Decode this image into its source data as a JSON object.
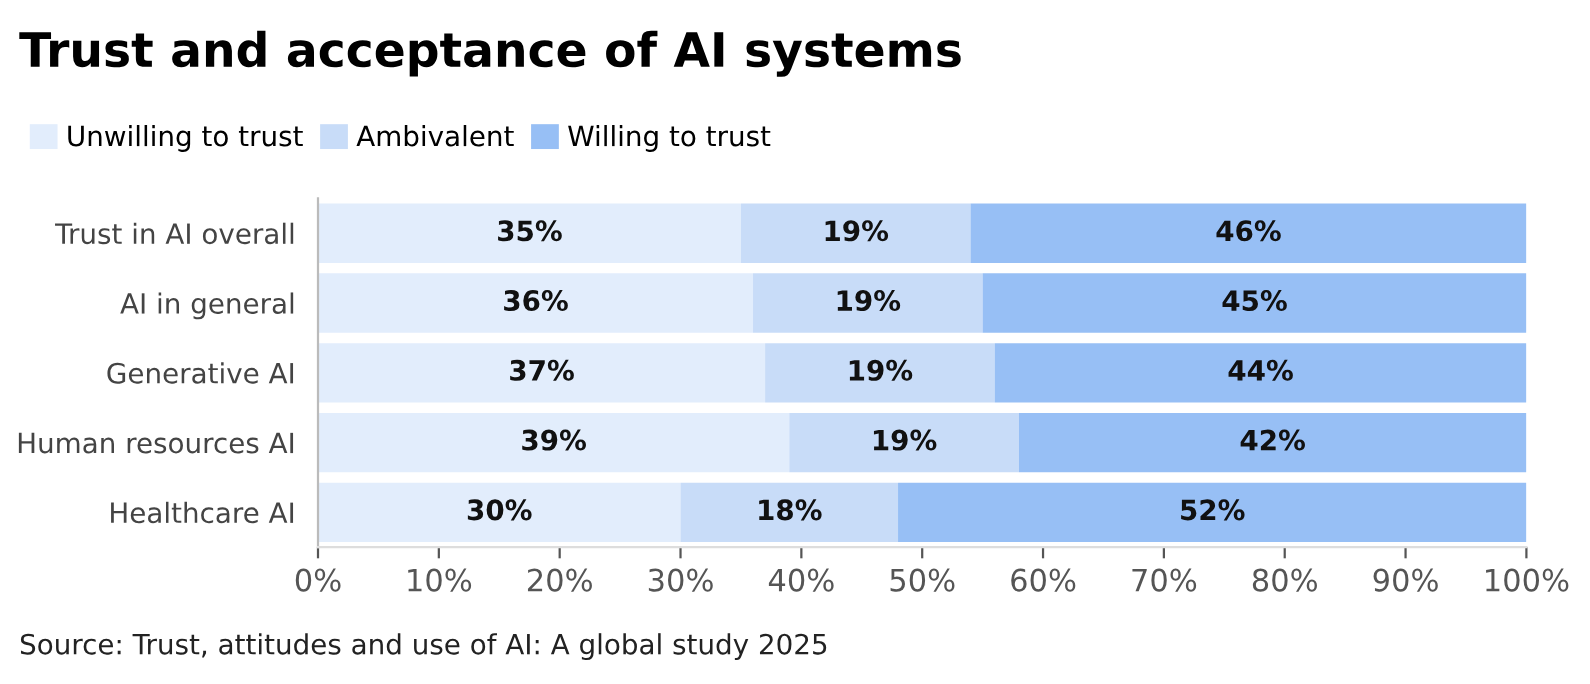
{
  "chart_data": {
    "type": "bar",
    "title": "Trust and acceptance of AI systems",
    "orientation": "horizontal",
    "stacked": true,
    "legend": "top left",
    "categories": [
      "Trust in AI overall",
      "AI in general",
      "Generative AI",
      "Human resources AI",
      "Healthcare AI"
    ],
    "series": [
      {
        "name": "Unwilling to trust",
        "color": "#e2edfc",
        "values": [
          35,
          36,
          37,
          39,
          30
        ],
        "value_labels": [
          "35%",
          "36%",
          "37%",
          "39%",
          "30%"
        ]
      },
      {
        "name": "Ambivalent",
        "color": "#c8dcf8",
        "values": [
          19,
          19,
          19,
          19,
          18
        ],
        "value_labels": [
          "19%",
          "19%",
          "19%",
          "19%",
          "18%"
        ]
      },
      {
        "name": "Willing to trust",
        "color": "#97bff5",
        "values": [
          46,
          45,
          44,
          42,
          52
        ],
        "value_labels": [
          "46%",
          "45%",
          "44%",
          "42%",
          "52%"
        ]
      }
    ],
    "xlim": [
      0,
      100
    ],
    "xticks": [
      {
        "value": 0,
        "label": "0%"
      },
      {
        "value": 10,
        "label": "10%"
      },
      {
        "value": 20,
        "label": "20%"
      },
      {
        "value": 30,
        "label": "30%"
      },
      {
        "value": 40,
        "label": "40%"
      },
      {
        "value": 50,
        "label": "50%"
      },
      {
        "value": 60,
        "label": "60%"
      },
      {
        "value": 70,
        "label": "70%"
      },
      {
        "value": 80,
        "label": "80%"
      },
      {
        "value": 90,
        "label": "90%"
      },
      {
        "value": 100,
        "label": "100%"
      }
    ],
    "grid": false,
    "annotations": [
      "Source: Trust, attitudes and use of AI: A global study 2025"
    ]
  }
}
